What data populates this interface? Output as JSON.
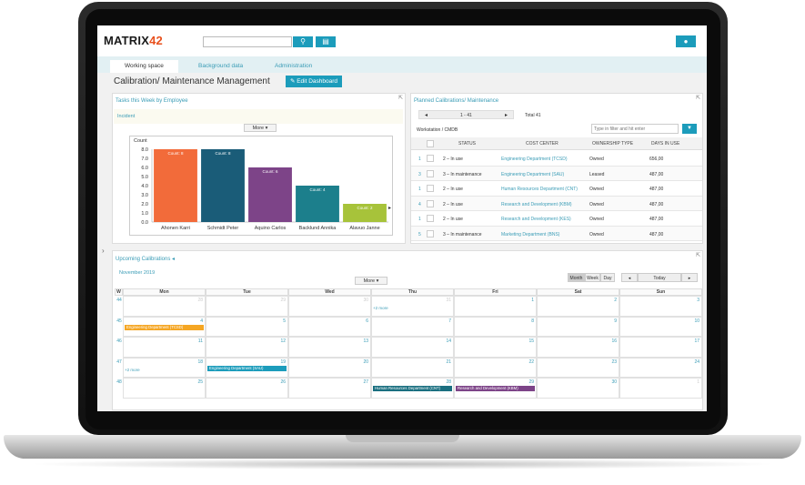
{
  "app": {
    "logo_text": "MATRIX",
    "logo_num": "42"
  },
  "header": {
    "search_placeholder": "",
    "search_icon": "search-icon",
    "cart_icon": "cart-icon",
    "user_icon": "user-icon"
  },
  "tabs": [
    {
      "label": "Working space",
      "active": true
    },
    {
      "label": "Background data",
      "active": false
    },
    {
      "label": "Administration",
      "active": false
    }
  ],
  "page": {
    "title": "Calibration/ Maintenance Management",
    "edit_label": "Edit Dashboard"
  },
  "tasks_panel": {
    "title": "Tasks this Week by Employee",
    "subtitle": "Incident",
    "more_label": "More",
    "legend_label": "Count"
  },
  "chart_data": {
    "type": "bar",
    "title": "",
    "xlabel": "",
    "ylabel": "Count",
    "ylim": [
      0,
      8
    ],
    "yticks": [
      "0.0",
      "1.0",
      "2.0",
      "3.0",
      "4.0",
      "5.0",
      "6.0",
      "7.0",
      "8.0"
    ],
    "categories": [
      "Ahonen Karri",
      "Schmidt Peter",
      "Aquino Carlos",
      "Backlund Annika",
      "Alavuo Janne"
    ],
    "values": [
      8,
      8,
      6,
      4,
      2
    ],
    "labels": [
      "Count: 8",
      "Count: 8",
      "Count: 6",
      "Count: 4",
      "Count: 2"
    ],
    "colors": [
      "#f26b3a",
      "#1a5c78",
      "#7d4488",
      "#1c7f8c",
      "#a7c33a"
    ],
    "grid": false
  },
  "planned_panel": {
    "title": "Planned Calibrations/ Maintenance",
    "pager": "1 - 41",
    "total": "Total 41",
    "group_label": "Workstation / CMDB",
    "filter_placeholder": "Type in filter and hit enter",
    "columns": [
      "STATUS",
      "COST CENTER",
      "OWNERSHIP TYPE",
      "DAYS IN USE"
    ],
    "rows": [
      {
        "num": "1",
        "status": "2 – In use",
        "cost_center": "Engineering Department (TCSD)",
        "ownership": "Owned",
        "days": "656,00"
      },
      {
        "num": "3",
        "status": "3 – In maintenance",
        "cost_center": "Engineering Department (SAU)",
        "ownership": "Leased",
        "days": "487,00"
      },
      {
        "num": "1",
        "status": "2 – In use",
        "cost_center": "Human Resources Department (CNT)",
        "ownership": "Owned",
        "days": "487,00"
      },
      {
        "num": "4",
        "status": "2 – In use",
        "cost_center": "Research and Development (KBM)",
        "ownership": "Owned",
        "days": "487,00"
      },
      {
        "num": "1",
        "status": "2 – In use",
        "cost_center": "Research and Development (KES)",
        "ownership": "Owned",
        "days": "487,00"
      },
      {
        "num": "5",
        "status": "3 – In maintenance",
        "cost_center": "Marketing Department (BNS)",
        "ownership": "Owned",
        "days": "487,00"
      }
    ]
  },
  "calendar": {
    "title": "Upcoming Calibrations",
    "month": "November 2019",
    "more_label": "More",
    "views": [
      "Month",
      "Week",
      "Day"
    ],
    "today_label": "Today",
    "week_col": "W",
    "days": [
      "Mon",
      "Tue",
      "Wed",
      "Thu",
      "Fri",
      "Sat",
      "Sun"
    ],
    "weeks": [
      {
        "w": "44",
        "dates": [
          "28",
          "29",
          "30",
          "31",
          "1",
          "2",
          "3"
        ],
        "dim": [
          true,
          true,
          true,
          true,
          false,
          false,
          false
        ]
      },
      {
        "w": "45",
        "dates": [
          "4",
          "5",
          "6",
          "7",
          "8",
          "9",
          "10"
        ],
        "dim": [
          false,
          false,
          false,
          false,
          false,
          false,
          false
        ]
      },
      {
        "w": "46",
        "dates": [
          "11",
          "12",
          "13",
          "14",
          "15",
          "16",
          "17"
        ],
        "dim": [
          false,
          false,
          false,
          false,
          false,
          false,
          false
        ]
      },
      {
        "w": "47",
        "dates": [
          "18",
          "19",
          "20",
          "21",
          "22",
          "23",
          "24"
        ],
        "dim": [
          false,
          false,
          false,
          false,
          false,
          false,
          false
        ]
      },
      {
        "w": "48",
        "dates": [
          "25",
          "26",
          "27",
          "28",
          "29",
          "30",
          "1"
        ],
        "dim": [
          false,
          false,
          false,
          false,
          false,
          false,
          true
        ]
      }
    ],
    "more_links": [
      "+2 more",
      "+2 more"
    ],
    "events": [
      {
        "label": "Engineering Department (TCSD)",
        "color": "#f5a623"
      },
      {
        "label": "Engineering Department (SAU)",
        "color": "#1c9cbb"
      },
      {
        "label": "Human Resources Department (CNT)",
        "color": "#1a6f80"
      },
      {
        "label": "Research and Development (KBM)",
        "color": "#7d4488"
      }
    ]
  }
}
